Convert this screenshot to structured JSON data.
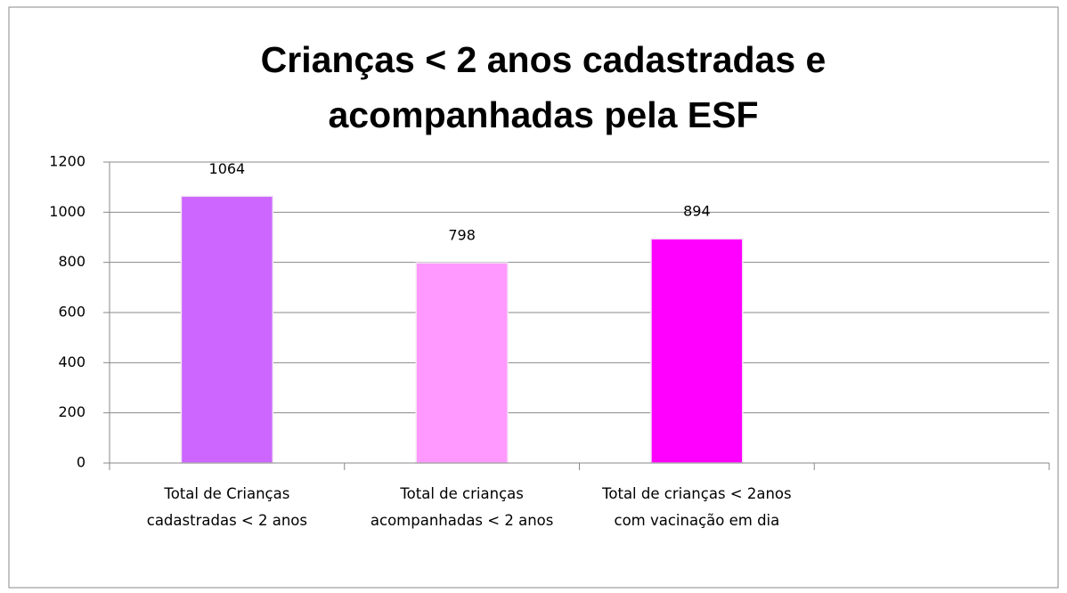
{
  "chart_data": {
    "type": "bar",
    "title": "Crianças < 2 anos cadastradas e acompanhadas pela ESF",
    "categories": [
      "Total de Crianças cadastradas < 2 anos",
      "Total de crianças acompanhadas < 2 anos",
      "Total de crianças < 2anos com vacinação em dia",
      null
    ],
    "values": [
      1064,
      798,
      894,
      null
    ],
    "colors": [
      "#cc66ff",
      "#ff99ff",
      "#ff00ff",
      null
    ],
    "ylim": [
      0,
      1200
    ],
    "yticks": [
      0,
      200,
      400,
      600,
      800,
      1000,
      1200
    ],
    "grid": true
  }
}
